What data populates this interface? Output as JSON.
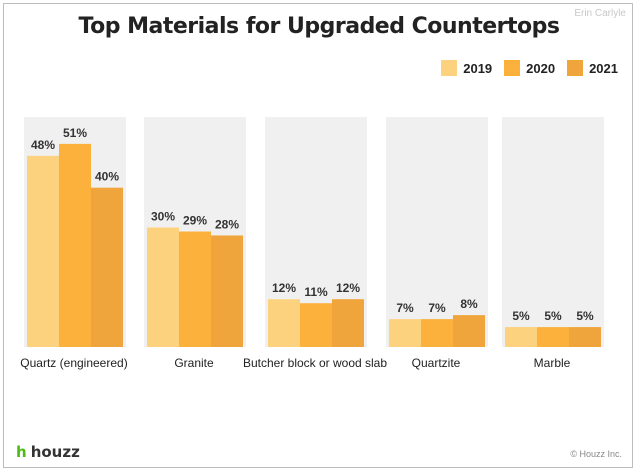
{
  "watermark": "Erin Carlyle",
  "footer": {
    "logo": "houzz",
    "copyright": "© Houzz Inc."
  },
  "colors": {
    "2019": "#fdd27f",
    "2020": "#fbb13c",
    "2021": "#f0a43c",
    "panel": "#f0f0f0"
  },
  "chart_data": {
    "type": "bar",
    "title": "Top Materials for Upgraded Countertops",
    "categories": [
      "Quartz (engineered)",
      "Granite",
      "Butcher block or wood slab",
      "Quartzite",
      "Marble"
    ],
    "series": [
      {
        "name": "2019",
        "values": [
          48,
          30,
          12,
          7,
          5
        ],
        "labels": [
          "48%",
          "30%",
          "12%",
          "7%",
          "5%"
        ]
      },
      {
        "name": "2020",
        "values": [
          51,
          29,
          11,
          7,
          5
        ],
        "labels": [
          "51%",
          "29%",
          "11%",
          "7%",
          "5%"
        ]
      },
      {
        "name": "2021",
        "values": [
          40,
          28,
          12,
          8,
          5
        ],
        "labels": [
          "40%",
          "28%",
          "12%",
          "8%",
          "5%"
        ]
      }
    ],
    "ylim": [
      0,
      59
    ],
    "legend": "top-right",
    "grid": false
  }
}
